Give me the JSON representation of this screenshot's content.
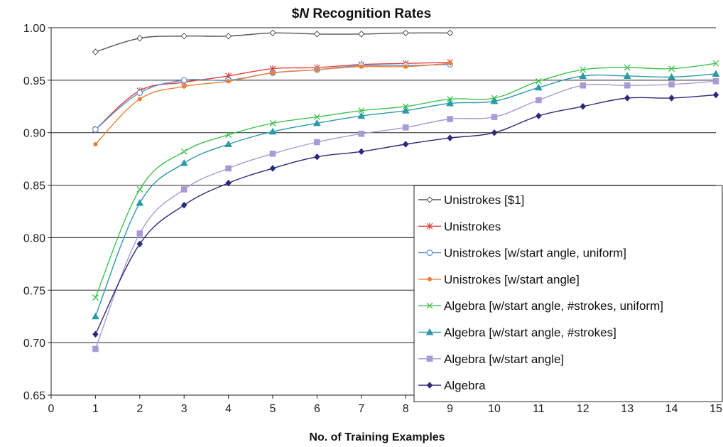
{
  "chart_data": {
    "type": "line",
    "title_prefix": "$",
    "title_italic": "N",
    "title_rest": " Recognition Rates",
    "xlabel": "No. of Training Examples",
    "ylabel": "",
    "xlim": [
      0,
      15
    ],
    "ylim": [
      0.65,
      1.0
    ],
    "x_ticks": [
      "0",
      "1",
      "2",
      "3",
      "4",
      "5",
      "6",
      "7",
      "8",
      "9",
      "10",
      "11",
      "12",
      "13",
      "14",
      "15"
    ],
    "y_ticks": [
      "0.65",
      "0.70",
      "0.75",
      "0.80",
      "0.85",
      "0.90",
      "0.95",
      "1.00"
    ],
    "grid": "horizontal",
    "legend_position": "bottom-right",
    "series": [
      {
        "name": "Unistrokes [$1]",
        "color": "#555555",
        "marker": "diamond-open",
        "x": [
          1,
          2,
          3,
          4,
          5,
          6,
          7,
          8,
          9
        ],
        "values": [
          0.977,
          0.99,
          0.992,
          0.992,
          0.995,
          0.994,
          0.994,
          0.995,
          0.995
        ]
      },
      {
        "name": "Unistrokes",
        "color": "#e0403a",
        "marker": "star",
        "x": [
          1,
          2,
          3,
          4,
          5,
          6,
          7,
          8,
          9
        ],
        "values": [
          0.903,
          0.94,
          0.948,
          0.954,
          0.961,
          0.962,
          0.965,
          0.966,
          0.967
        ]
      },
      {
        "name": "Unistrokes [w/start angle, uniform]",
        "color": "#5b8fd0",
        "marker": "circle-open",
        "x": [
          1,
          2,
          3,
          4,
          5,
          6,
          7,
          8,
          9
        ],
        "values": [
          0.903,
          0.938,
          0.95,
          0.95,
          0.957,
          0.96,
          0.964,
          0.964,
          0.965
        ]
      },
      {
        "name": "Unistrokes [w/start angle]",
        "color": "#e8823a",
        "marker": "dot",
        "x": [
          1,
          2,
          3,
          4,
          5,
          6,
          7,
          8,
          9
        ],
        "values": [
          0.889,
          0.932,
          0.944,
          0.949,
          0.957,
          0.96,
          0.963,
          0.963,
          0.966
        ]
      },
      {
        "name": "Algebra [w/start angle, #strokes, uniform]",
        "color": "#3ec24d",
        "marker": "x",
        "x": [
          1,
          2,
          3,
          4,
          5,
          6,
          7,
          8,
          9,
          10,
          11,
          12,
          13,
          14,
          15
        ],
        "values": [
          0.743,
          0.846,
          0.882,
          0.898,
          0.909,
          0.915,
          0.921,
          0.925,
          0.932,
          0.933,
          0.949,
          0.96,
          0.962,
          0.961,
          0.966
        ]
      },
      {
        "name": "Algebra [w/start angle, #strokes]",
        "color": "#2a9aa8",
        "marker": "triangle",
        "x": [
          1,
          2,
          3,
          4,
          5,
          6,
          7,
          8,
          9,
          10,
          11,
          12,
          13,
          14,
          15
        ],
        "values": [
          0.725,
          0.833,
          0.871,
          0.889,
          0.901,
          0.909,
          0.916,
          0.921,
          0.928,
          0.93,
          0.943,
          0.954,
          0.954,
          0.953,
          0.956
        ]
      },
      {
        "name": "Algebra [w/start angle]",
        "color": "#a99ad4",
        "marker": "square",
        "x": [
          1,
          2,
          3,
          4,
          5,
          6,
          7,
          8,
          9,
          10,
          11,
          12,
          13,
          14,
          15
        ],
        "values": [
          0.694,
          0.804,
          0.846,
          0.866,
          0.88,
          0.891,
          0.899,
          0.905,
          0.913,
          0.915,
          0.931,
          0.945,
          0.945,
          0.946,
          0.949
        ]
      },
      {
        "name": "Algebra",
        "color": "#2b2a7a",
        "marker": "diamond",
        "x": [
          1,
          2,
          3,
          4,
          5,
          6,
          7,
          8,
          9,
          10,
          11,
          12,
          13,
          14,
          15
        ],
        "values": [
          0.708,
          0.794,
          0.831,
          0.852,
          0.866,
          0.877,
          0.882,
          0.889,
          0.895,
          0.9,
          0.916,
          0.925,
          0.933,
          0.933,
          0.936
        ]
      }
    ]
  }
}
